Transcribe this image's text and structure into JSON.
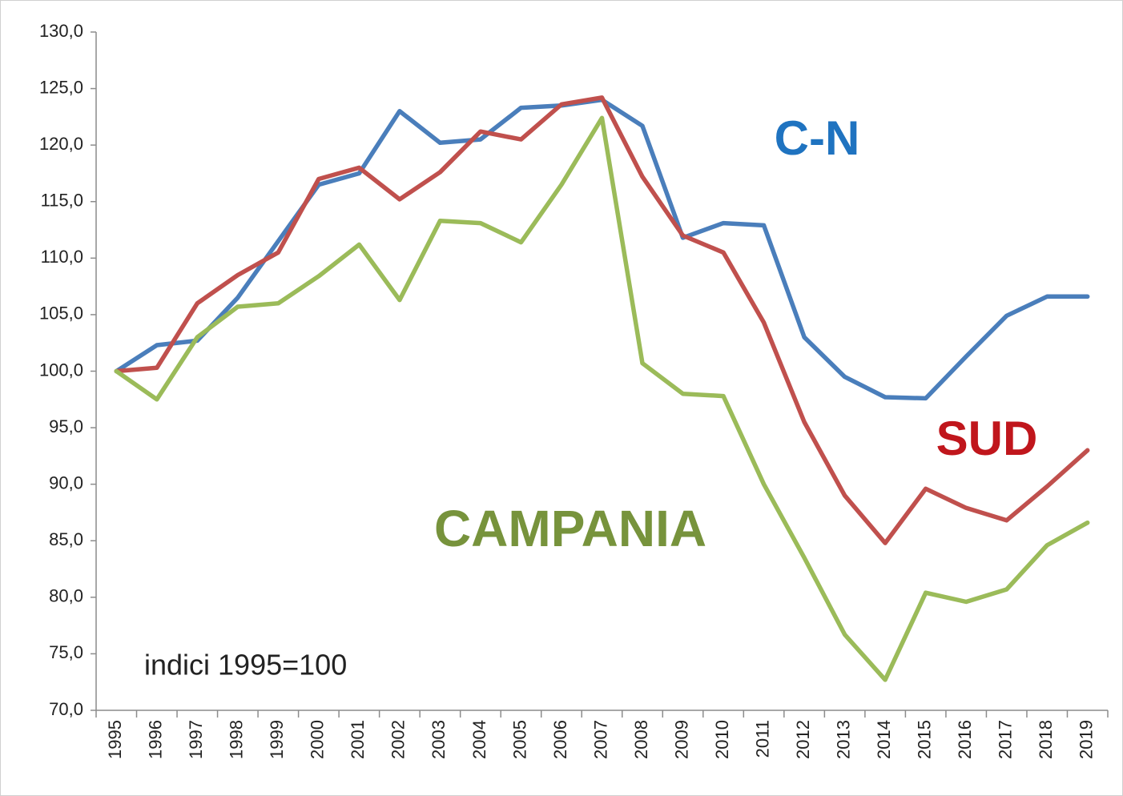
{
  "chart_data": {
    "type": "line",
    "categories": [
      "1995",
      "1996",
      "1997",
      "1998",
      "1999",
      "2000",
      "2001",
      "2002",
      "2003",
      "2004",
      "2005",
      "2006",
      "2007",
      "2008",
      "2009",
      "2010",
      "2011",
      "2012",
      "2013",
      "2014",
      "2015",
      "2016",
      "2017",
      "2018",
      "2019"
    ],
    "series": [
      {
        "name": "C-N",
        "color": "#4a7ebb",
        "label_color": "#1f73c0",
        "values": [
          100,
          102.3,
          102.7,
          106.5,
          111.5,
          116.5,
          117.5,
          123.0,
          120.2,
          120.5,
          123.3,
          123.5,
          124.0,
          121.7,
          111.8,
          113.1,
          112.9,
          103.0,
          99.5,
          97.7,
          97.6,
          101.3,
          104.9,
          106.6,
          106.6
        ]
      },
      {
        "name": "SUD",
        "color": "#c0504d",
        "label_color": "#c0161c",
        "values": [
          100,
          100.3,
          106.0,
          108.5,
          110.5,
          117.0,
          118.0,
          115.2,
          117.6,
          121.2,
          120.5,
          123.6,
          124.2,
          117.2,
          112.0,
          110.5,
          104.3,
          95.5,
          89.0,
          84.8,
          89.6,
          87.9,
          86.8,
          89.8,
          93.0
        ]
      },
      {
        "name": "CAMPANIA",
        "color": "#9bbb59",
        "label_color": "#77933c",
        "values": [
          100,
          97.5,
          103.0,
          105.7,
          106.0,
          108.4,
          111.2,
          106.3,
          113.3,
          113.1,
          111.4,
          116.5,
          122.4,
          100.7,
          98.0,
          97.8,
          90.0,
          83.5,
          76.7,
          72.7,
          80.4,
          79.6,
          80.7,
          84.6,
          86.6
        ]
      }
    ],
    "annotations": [
      "indici 1995=100"
    ],
    "ylim": [
      70,
      130
    ],
    "yticks": [
      {
        "value": 70,
        "label": "70,0"
      },
      {
        "value": 75,
        "label": "75,0"
      },
      {
        "value": 80,
        "label": "80,0"
      },
      {
        "value": 85,
        "label": "85,0"
      },
      {
        "value": 90,
        "label": "90,0"
      },
      {
        "value": 95,
        "label": "95,0"
      },
      {
        "value": 100,
        "label": "100,0"
      },
      {
        "value": 105,
        "label": "105,0"
      },
      {
        "value": 110,
        "label": "110,0"
      },
      {
        "value": 115,
        "label": "115,0"
      },
      {
        "value": 120,
        "label": "120,0"
      },
      {
        "value": 125,
        "label": "125,0"
      },
      {
        "value": 130,
        "label": "130,0"
      }
    ],
    "grid": false
  }
}
